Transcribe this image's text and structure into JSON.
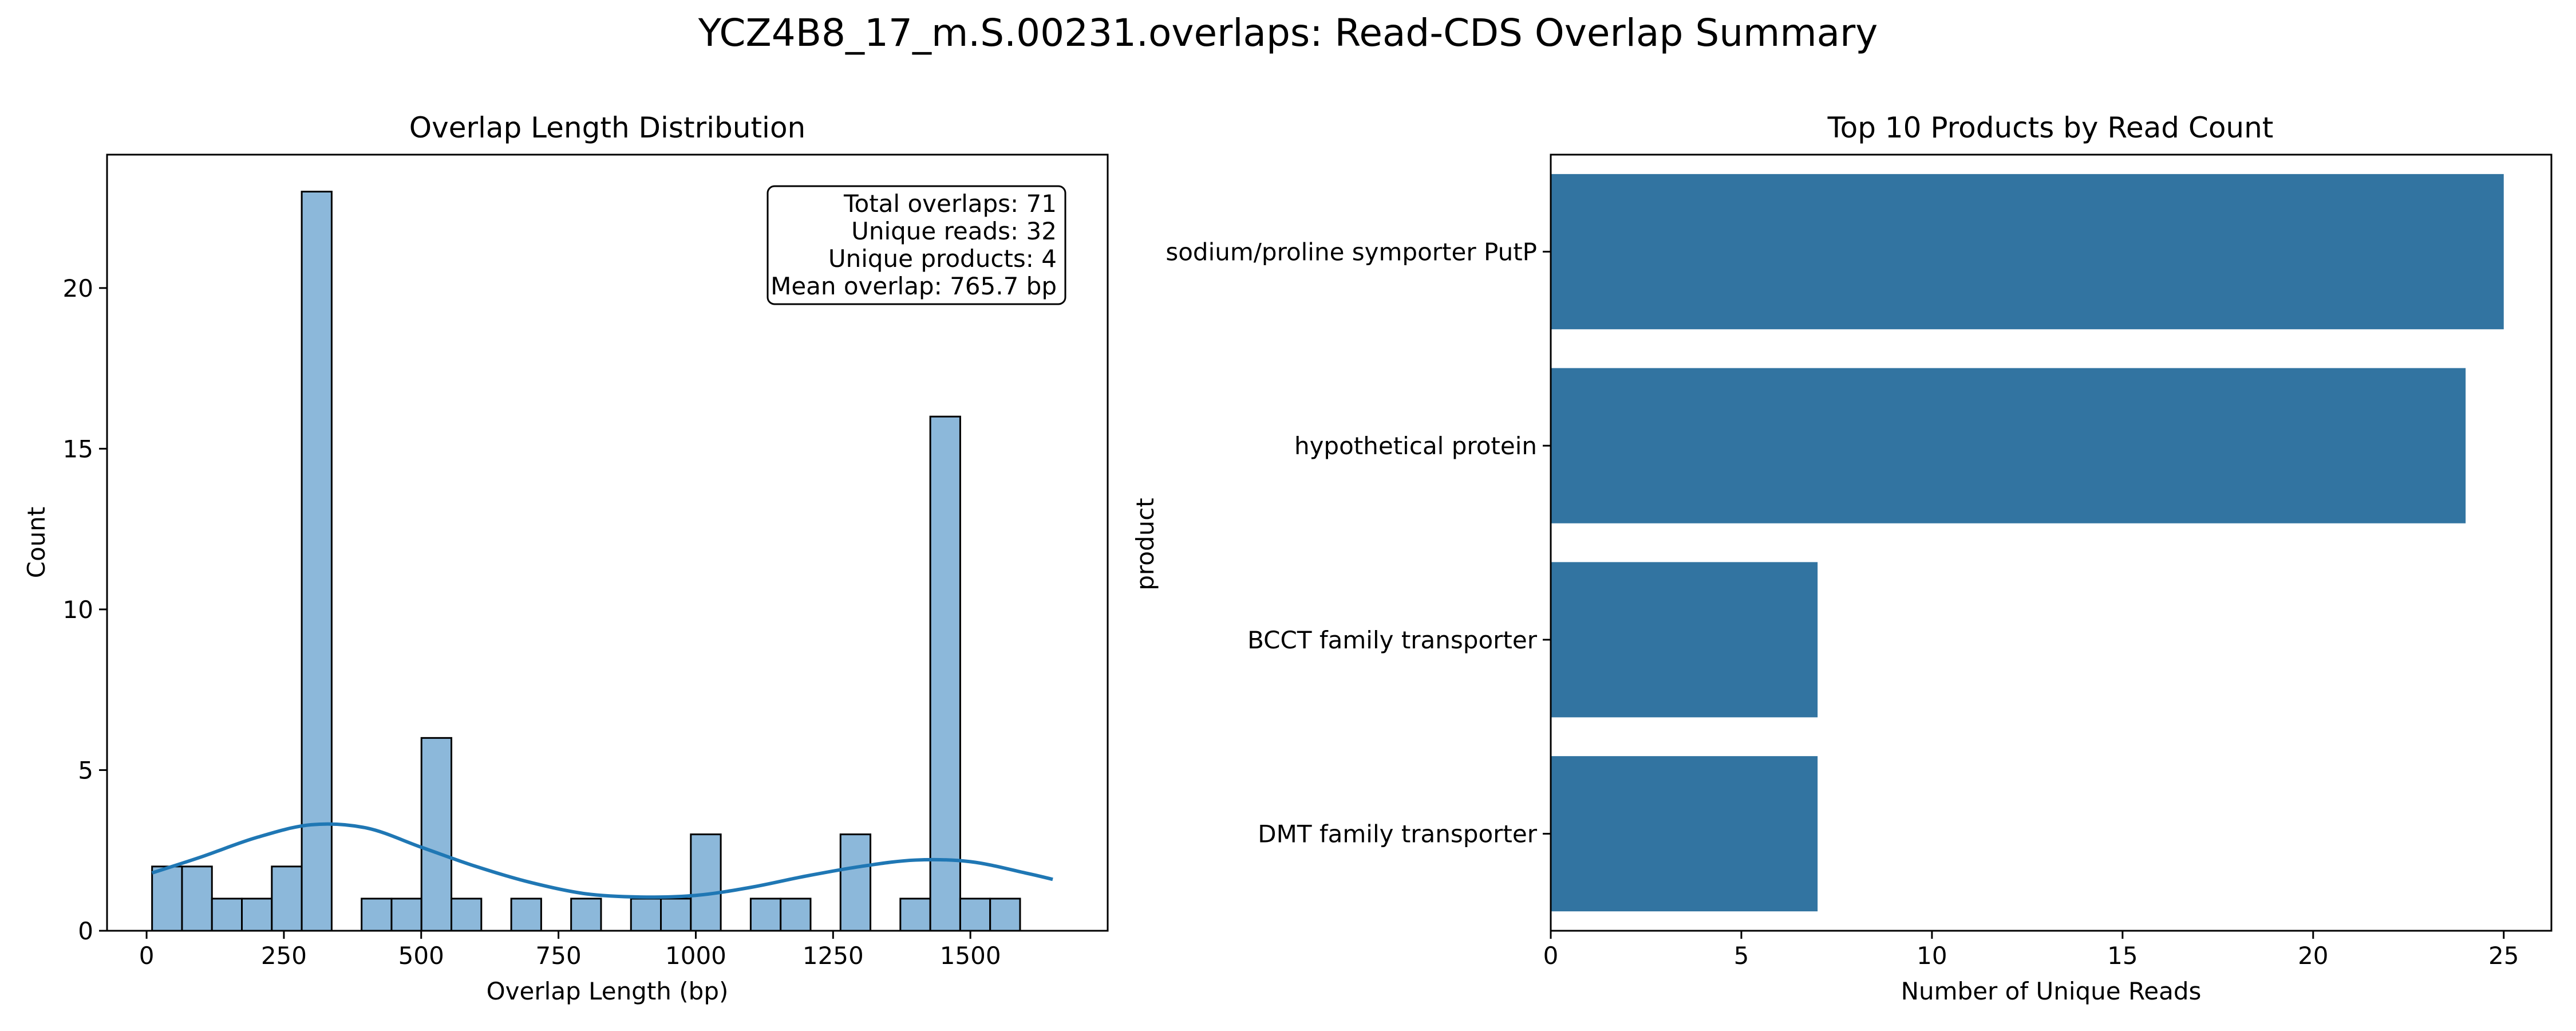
{
  "figure": {
    "title": "YCZ4B8_17_m.S.00231.overlaps: Read-CDS Overlap Summary"
  },
  "chart_data": [
    {
      "type": "bar",
      "subtype": "histogram",
      "title": "Overlap Length Distribution",
      "xlabel": "Overlap Length (bp)",
      "ylabel": "Count",
      "xlim": [
        -72,
        1750
      ],
      "ylim": [
        0,
        24.15
      ],
      "xticks": [
        0,
        250,
        500,
        750,
        1000,
        1250,
        1500
      ],
      "yticks": [
        0,
        5,
        10,
        15,
        20
      ],
      "bin_width": 54.5,
      "bin_start": 10,
      "counts": [
        2,
        2,
        1,
        1,
        2,
        23,
        0,
        1,
        1,
        6,
        1,
        0,
        1,
        0,
        1,
        0,
        1,
        1,
        3,
        0,
        1,
        1,
        0,
        3,
        0,
        1,
        16,
        1,
        1
      ],
      "kde_curve": {
        "x": [
          10,
          100,
          200,
          300,
          400,
          500,
          600,
          700,
          800,
          900,
          1000,
          1100,
          1200,
          1300,
          1400,
          1500,
          1600,
          1650
        ],
        "y": [
          1.8,
          2.3,
          2.9,
          3.3,
          3.2,
          2.6,
          2.0,
          1.5,
          1.15,
          1.05,
          1.1,
          1.35,
          1.7,
          2.0,
          2.2,
          2.15,
          1.8,
          1.6
        ]
      },
      "color": "#8cb8da",
      "edge_color": "#000000",
      "kde_color": "#1f77b4",
      "stats_box": {
        "lines": [
          "Total overlaps: 71",
          "Unique reads: 32",
          "Unique products: 4",
          "Mean overlap: 765.7 bp"
        ],
        "placement": "top-right"
      }
    },
    {
      "type": "bar",
      "orientation": "horizontal",
      "title": "Top 10 Products by Read Count",
      "xlabel": "Number of Unique Reads",
      "ylabel": "product",
      "categories": [
        "sodium/proline symporter PutP",
        "hypothetical protein",
        "BCCT family transporter",
        "DMT family transporter"
      ],
      "values": [
        25,
        24,
        7,
        7
      ],
      "xlim": [
        0,
        26.25
      ],
      "xticks": [
        0,
        5,
        10,
        15,
        20,
        25
      ],
      "color": "#3274a1"
    }
  ]
}
